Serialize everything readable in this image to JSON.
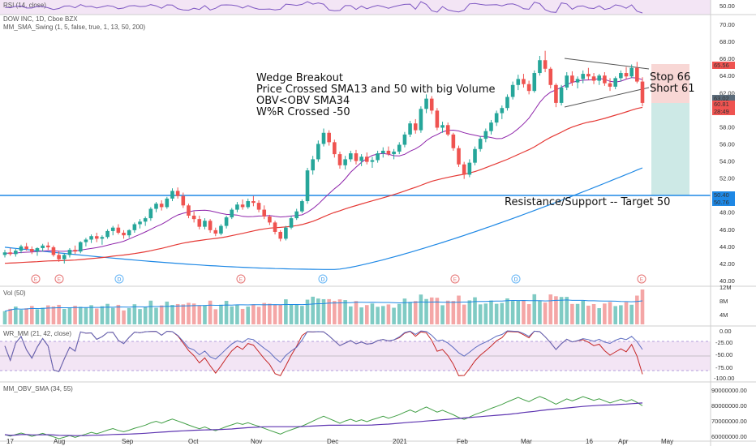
{
  "chart_data": {
    "type": "candlestick",
    "symbol_title": "DOW INC, 1D, Cboe BZX",
    "indicators": {
      "rsi": "RSI (14, close)",
      "sma_swing": "MM_SMA_Swing (1, 5, false, true, 1, 13, 50, 200)",
      "vol": "Vol (50)",
      "wr": "WR_MM (21, 42, close)",
      "obv": "MM_OBV_SMA (34, 55)"
    },
    "annotations": {
      "breakout": [
        "Wedge Breakout",
        "Price Crossed SMA13 and 50 with big Volume",
        "OBV<OBV SMA34",
        "W%R Crossed -50"
      ],
      "stop": "Stop 66",
      "short": "Short 61",
      "support": "Resistance/Support -- Target 50"
    },
    "price_axis": {
      "min": 40,
      "max": 70,
      "ticks": [
        "70.00",
        "68.00",
        "66.00",
        "64.00",
        "62.00",
        "60.00",
        "58.00",
        "56.00",
        "54.00",
        "52.00",
        "50.00",
        "48.00",
        "46.00",
        "44.00",
        "42.00",
        "40.00"
      ]
    },
    "price_badges": [
      {
        "text": "65.56",
        "color": "#ef5350"
      },
      {
        "text": "63.02",
        "color": "#5b6b7a"
      },
      {
        "text": "60.81",
        "color": "#ef5350"
      },
      {
        "text": "28:49",
        "color": "#ef5350"
      },
      {
        "text": "50.40",
        "color": "#1e88e5"
      },
      {
        "text": "50.76",
        "color": "#1e88e5"
      }
    ],
    "rsi_axis": {
      "tick": "50.00"
    },
    "vol_axis": {
      "ticks": [
        "12M",
        "8M",
        "4M"
      ]
    },
    "wr_axis": {
      "ticks": [
        "0.00",
        "-25.00",
        "-50.00",
        "-75.00",
        "-100.00"
      ]
    },
    "obv_axis": {
      "ticks": [
        "90000000.00",
        "80000000.00",
        "70000000.00",
        "60000000.00"
      ]
    },
    "x_labels": [
      "17",
      "Aug",
      "Sep",
      "Oct",
      "Nov",
      "Dec",
      "2021",
      "Feb",
      "Mar",
      "16",
      "Apr",
      "May"
    ],
    "event_markers": [
      "E",
      "E",
      "D",
      "E",
      "D",
      "E",
      "D",
      "E"
    ],
    "candles": [
      [
        43.0,
        43.6,
        42.7,
        43.3
      ],
      [
        43.3,
        43.8,
        42.9,
        43.1
      ],
      [
        43.1,
        43.7,
        42.8,
        43.5
      ],
      [
        43.5,
        44.2,
        43.2,
        44.0
      ],
      [
        44.0,
        44.4,
        43.5,
        43.7
      ],
      [
        43.7,
        44.0,
        43.1,
        43.4
      ],
      [
        43.4,
        43.9,
        42.9,
        43.8
      ],
      [
        43.8,
        44.3,
        43.4,
        44.1
      ],
      [
        44.1,
        44.5,
        43.6,
        43.9
      ],
      [
        43.9,
        44.1,
        42.8,
        43.0
      ],
      [
        43.0,
        43.4,
        42.2,
        42.5
      ],
      [
        42.5,
        43.2,
        42.0,
        43.0
      ],
      [
        43.0,
        43.8,
        42.7,
        43.6
      ],
      [
        43.6,
        44.1,
        43.1,
        43.4
      ],
      [
        43.4,
        44.6,
        43.2,
        44.5
      ],
      [
        44.5,
        45.0,
        44.0,
        44.8
      ],
      [
        44.8,
        45.4,
        44.4,
        45.2
      ],
      [
        45.2,
        45.6,
        44.5,
        44.9
      ],
      [
        44.9,
        45.3,
        44.2,
        45.1
      ],
      [
        45.1,
        46.0,
        44.9,
        45.8
      ],
      [
        45.8,
        46.4,
        45.3,
        46.2
      ],
      [
        46.2,
        46.6,
        45.4,
        45.6
      ],
      [
        45.6,
        45.9,
        44.9,
        45.3
      ],
      [
        45.3,
        46.0,
        45.0,
        45.9
      ],
      [
        45.9,
        46.8,
        45.6,
        46.6
      ],
      [
        46.6,
        47.2,
        46.1,
        46.9
      ],
      [
        46.9,
        47.5,
        46.4,
        47.3
      ],
      [
        47.3,
        48.6,
        47.0,
        48.4
      ],
      [
        48.4,
        49.2,
        48.0,
        49.0
      ],
      [
        49.0,
        49.4,
        48.2,
        48.6
      ],
      [
        48.6,
        49.8,
        48.4,
        49.6
      ],
      [
        49.6,
        50.8,
        49.3,
        50.5
      ],
      [
        50.5,
        50.9,
        49.6,
        49.9
      ],
      [
        49.9,
        50.3,
        48.5,
        48.8
      ],
      [
        48.8,
        49.0,
        47.3,
        47.6
      ],
      [
        47.6,
        48.1,
        46.8,
        47.2
      ],
      [
        47.2,
        47.6,
        46.0,
        46.3
      ],
      [
        46.3,
        47.3,
        46.0,
        47.0
      ],
      [
        47.0,
        47.2,
        45.6,
        45.9
      ],
      [
        45.9,
        46.2,
        45.2,
        45.5
      ],
      [
        45.5,
        46.6,
        45.3,
        46.4
      ],
      [
        46.4,
        47.6,
        46.1,
        47.4
      ],
      [
        47.4,
        48.5,
        47.2,
        48.3
      ],
      [
        48.3,
        49.2,
        48.0,
        48.9
      ],
      [
        48.9,
        49.5,
        48.3,
        48.6
      ],
      [
        48.6,
        49.6,
        48.4,
        49.3
      ],
      [
        49.3,
        49.9,
        48.7,
        49.1
      ],
      [
        49.1,
        49.4,
        48.0,
        48.3
      ],
      [
        48.3,
        48.8,
        47.2,
        47.5
      ],
      [
        47.5,
        47.7,
        46.5,
        46.8
      ],
      [
        46.8,
        47.0,
        45.4,
        45.7
      ],
      [
        45.7,
        45.9,
        44.6,
        44.9
      ],
      [
        44.9,
        46.4,
        44.7,
        46.2
      ],
      [
        46.2,
        47.6,
        46.0,
        47.3
      ],
      [
        47.3,
        48.4,
        47.1,
        48.1
      ],
      [
        48.1,
        49.5,
        47.9,
        49.3
      ],
      [
        49.3,
        53.2,
        49.0,
        52.9
      ],
      [
        52.9,
        54.6,
        52.4,
        54.2
      ],
      [
        54.2,
        56.4,
        53.9,
        56.0
      ],
      [
        56.0,
        57.8,
        55.7,
        57.3
      ],
      [
        57.3,
        57.6,
        55.8,
        56.2
      ],
      [
        56.2,
        56.5,
        54.4,
        54.8
      ],
      [
        54.8,
        55.1,
        53.1,
        53.5
      ],
      [
        53.5,
        54.6,
        53.0,
        54.2
      ],
      [
        54.2,
        55.2,
        53.9,
        54.9
      ],
      [
        54.9,
        55.3,
        53.6,
        54.0
      ],
      [
        54.0,
        54.8,
        53.4,
        54.5
      ],
      [
        54.5,
        55.0,
        53.6,
        53.9
      ],
      [
        53.9,
        54.5,
        53.2,
        54.1
      ],
      [
        54.1,
        55.2,
        53.8,
        54.9
      ],
      [
        54.9,
        55.6,
        54.4,
        55.2
      ],
      [
        55.2,
        55.7,
        54.6,
        54.8
      ],
      [
        54.8,
        55.4,
        54.2,
        55.1
      ],
      [
        55.1,
        56.2,
        54.8,
        55.9
      ],
      [
        55.9,
        57.4,
        55.6,
        57.1
      ],
      [
        57.1,
        58.7,
        56.8,
        58.4
      ],
      [
        58.4,
        58.9,
        57.2,
        57.6
      ],
      [
        57.6,
        60.4,
        57.3,
        60.1
      ],
      [
        60.1,
        61.8,
        59.6,
        61.3
      ],
      [
        61.3,
        61.6,
        59.5,
        59.9
      ],
      [
        59.9,
        60.2,
        57.6,
        57.9
      ],
      [
        57.9,
        58.6,
        57.3,
        58.2
      ],
      [
        58.2,
        58.5,
        56.9,
        57.1
      ],
      [
        57.1,
        57.3,
        55.2,
        55.5
      ],
      [
        55.5,
        55.8,
        53.3,
        53.6
      ],
      [
        53.6,
        53.9,
        51.9,
        52.4
      ],
      [
        52.4,
        54.2,
        52.1,
        53.8
      ],
      [
        53.8,
        55.7,
        53.5,
        55.4
      ],
      [
        55.4,
        56.9,
        55.1,
        56.6
      ],
      [
        56.6,
        57.8,
        56.2,
        57.5
      ],
      [
        57.5,
        58.8,
        57.1,
        58.5
      ],
      [
        58.5,
        59.9,
        58.1,
        59.6
      ],
      [
        59.6,
        60.5,
        58.9,
        60.2
      ],
      [
        60.2,
        61.8,
        59.9,
        61.5
      ],
      [
        61.5,
        63.3,
        61.2,
        62.9
      ],
      [
        62.9,
        64.1,
        62.3,
        63.6
      ],
      [
        63.6,
        64.2,
        62.6,
        63.0
      ],
      [
        63.0,
        63.4,
        61.8,
        62.2
      ],
      [
        62.2,
        64.6,
        62.0,
        64.3
      ],
      [
        64.3,
        66.3,
        64.0,
        65.8
      ],
      [
        65.8,
        66.9,
        64.4,
        64.8
      ],
      [
        64.8,
        65.0,
        62.5,
        62.9
      ],
      [
        62.9,
        63.1,
        60.3,
        60.8
      ],
      [
        60.8,
        62.9,
        60.5,
        62.6
      ],
      [
        62.6,
        64.4,
        62.3,
        64.0
      ],
      [
        64.0,
        64.5,
        62.8,
        63.2
      ],
      [
        63.2,
        63.9,
        62.5,
        63.6
      ],
      [
        63.6,
        64.6,
        63.1,
        64.2
      ],
      [
        64.2,
        64.9,
        63.5,
        63.9
      ],
      [
        63.9,
        64.3,
        63.0,
        63.4
      ],
      [
        63.4,
        64.2,
        62.9,
        64.0
      ],
      [
        64.0,
        64.4,
        62.8,
        63.1
      ],
      [
        63.1,
        63.7,
        62.2,
        62.7
      ],
      [
        62.7,
        63.9,
        62.4,
        63.7
      ],
      [
        63.7,
        64.6,
        63.3,
        64.3
      ],
      [
        64.3,
        65.0,
        63.6,
        63.9
      ],
      [
        63.9,
        65.3,
        63.7,
        64.9
      ],
      [
        64.9,
        65.6,
        63.1,
        63.3
      ],
      [
        63.3,
        63.8,
        60.4,
        60.8
      ]
    ]
  }
}
